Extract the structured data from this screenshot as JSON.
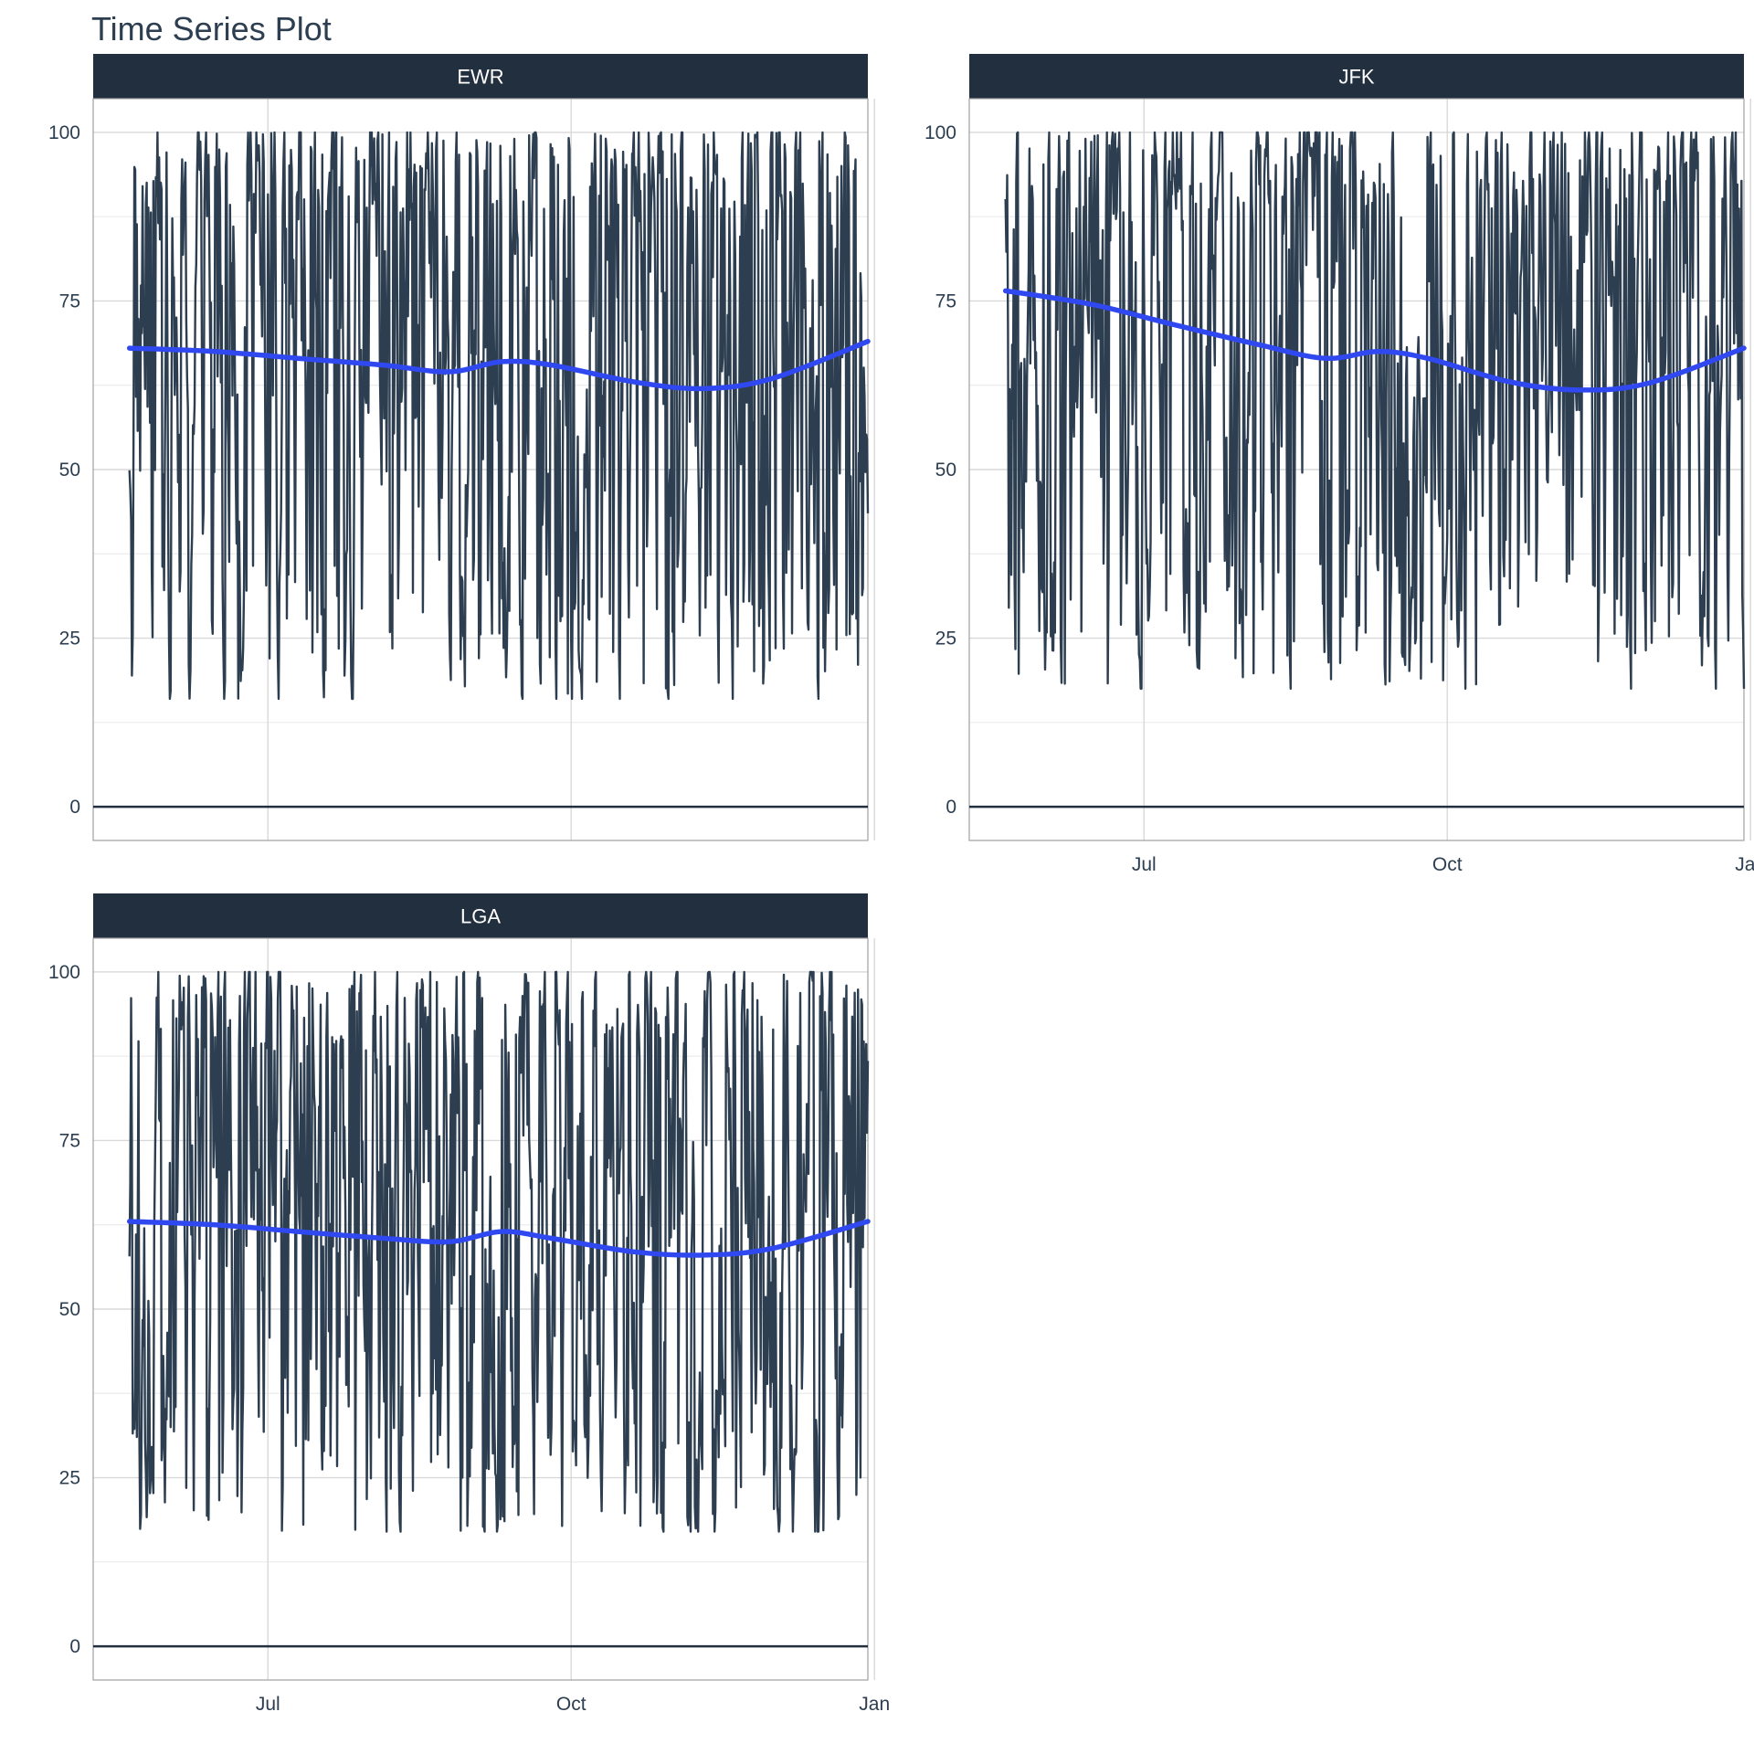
{
  "chart_data": {
    "type": "line",
    "title": "Time Series Plot",
    "xlabel": "",
    "ylabel": "",
    "x_range": [
      "2013-05-09",
      "2013-12-30"
    ],
    "x_ticks": [
      {
        "date": "2013-07-01",
        "label": "Jul"
      },
      {
        "date": "2013-10-01",
        "label": "Oct"
      },
      {
        "date": "2014-01-01",
        "label": "Jan"
      }
    ],
    "ylim": [
      -5,
      105
    ],
    "y_ticks": [
      0,
      25,
      50,
      75,
      100
    ],
    "grid": true,
    "zero_line": true,
    "colors": {
      "strip": "#222f3e",
      "series": "#2c3e50",
      "trend": "#3048f0",
      "grid": "#d9d9d9",
      "panel_border": "#a0a0a0"
    },
    "panels": [
      {
        "name": "EWR",
        "show_x_labels": false,
        "date_range": [
          "2013-05-20",
          "2013-12-30"
        ],
        "y_range": [
          16,
          100
        ],
        "value_mean": 66,
        "trend": [
          {
            "x": "2013-05-20",
            "y": 68
          },
          {
            "x": "2013-06-15",
            "y": 67.5
          },
          {
            "x": "2013-07-10",
            "y": 66.5
          },
          {
            "x": "2013-08-05",
            "y": 65.5
          },
          {
            "x": "2013-08-25",
            "y": 64.5
          },
          {
            "x": "2013-09-10",
            "y": 66
          },
          {
            "x": "2013-09-25",
            "y": 65.5
          },
          {
            "x": "2013-10-20",
            "y": 63
          },
          {
            "x": "2013-11-10",
            "y": 62
          },
          {
            "x": "2013-12-01",
            "y": 63.5
          },
          {
            "x": "2013-12-30",
            "y": 69
          }
        ]
      },
      {
        "name": "JFK",
        "show_x_labels": true,
        "date_range": [
          "2013-05-20",
          "2013-12-30"
        ],
        "y_range": [
          17.5,
          100
        ],
        "value_mean": 66,
        "trend": [
          {
            "x": "2013-05-20",
            "y": 76.5
          },
          {
            "x": "2013-06-15",
            "y": 74.5
          },
          {
            "x": "2013-07-10",
            "y": 71.5
          },
          {
            "x": "2013-08-05",
            "y": 68.5
          },
          {
            "x": "2013-08-25",
            "y": 66.5
          },
          {
            "x": "2013-09-10",
            "y": 67.5
          },
          {
            "x": "2013-09-25",
            "y": 66.5
          },
          {
            "x": "2013-10-20",
            "y": 63
          },
          {
            "x": "2013-11-10",
            "y": 61.8
          },
          {
            "x": "2013-12-01",
            "y": 62.8
          },
          {
            "x": "2013-12-30",
            "y": 68
          }
        ]
      },
      {
        "name": "LGA",
        "show_x_labels": true,
        "date_range": [
          "2013-05-20",
          "2013-12-30"
        ],
        "y_range": [
          17,
          100
        ],
        "value_mean": 61,
        "trend": [
          {
            "x": "2013-05-20",
            "y": 63
          },
          {
            "x": "2013-06-15",
            "y": 62.5
          },
          {
            "x": "2013-07-10",
            "y": 61.5
          },
          {
            "x": "2013-08-05",
            "y": 60.5
          },
          {
            "x": "2013-08-25",
            "y": 60
          },
          {
            "x": "2013-09-10",
            "y": 61.5
          },
          {
            "x": "2013-09-25",
            "y": 60.5
          },
          {
            "x": "2013-10-20",
            "y": 58.5
          },
          {
            "x": "2013-11-10",
            "y": 58
          },
          {
            "x": "2013-12-01",
            "y": 59
          },
          {
            "x": "2013-12-30",
            "y": 63
          }
        ]
      }
    ]
  }
}
